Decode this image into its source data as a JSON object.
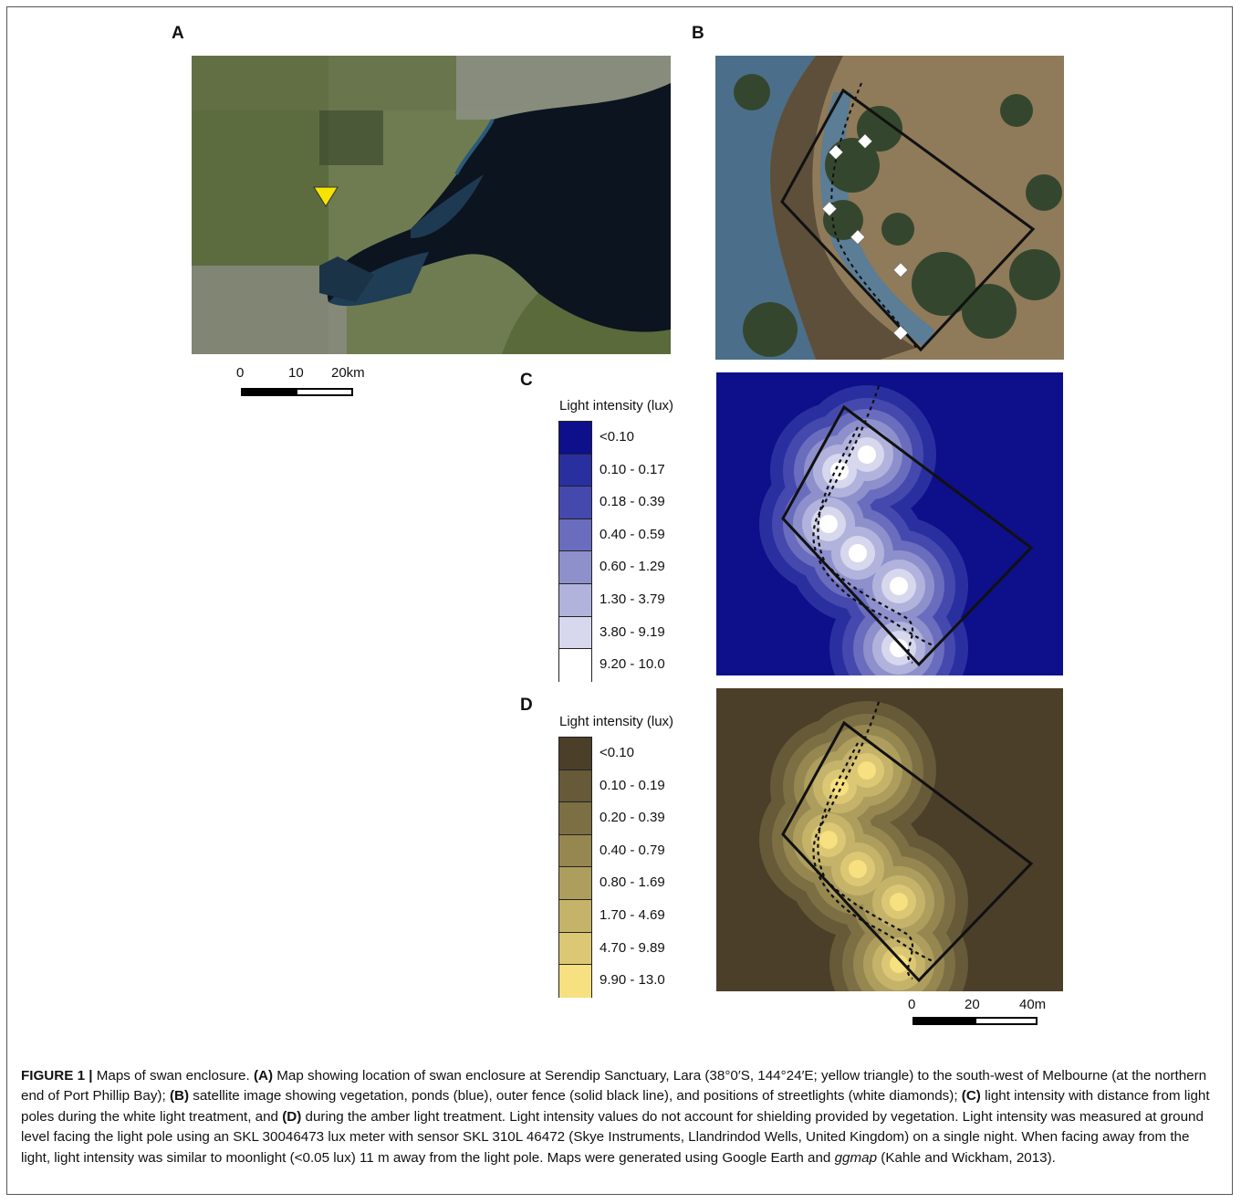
{
  "panels": {
    "a": {
      "label": "A",
      "scale": {
        "ticks": [
          "0",
          "10",
          "20km"
        ]
      }
    },
    "b": {
      "label": "B"
    },
    "c": {
      "label": "C",
      "legend_title": "Light intensity (lux)",
      "classes": [
        "<0.10",
        "0.10 - 0.17",
        "0.18 - 0.39",
        "0.40 - 0.59",
        "0.60 - 1.29",
        "1.30 - 3.79",
        "3.80 - 9.19",
        "9.20 - 10.0"
      ],
      "colors": [
        "#0e0f8a",
        "#2a2fa0",
        "#4549ad",
        "#6a6dbd",
        "#8e90cc",
        "#b1b3dc",
        "#d7d8ee",
        "#ffffff"
      ]
    },
    "d": {
      "label": "D",
      "legend_title": "Light intensity (lux)",
      "classes": [
        "<0.10",
        "0.10 - 0.19",
        "0.20 - 0.39",
        "0.40 - 0.79",
        "0.80 - 1.69",
        "1.70 - 4.69",
        "4.70 - 9.89",
        "9.90 - 13.0"
      ],
      "colors": [
        "#4b3f2a",
        "#665a38",
        "#7d6f44",
        "#968751",
        "#ae9e5e",
        "#c5b36a",
        "#dcc874",
        "#f6e07f"
      ],
      "scale": {
        "ticks": [
          "0",
          "20",
          "40m"
        ]
      }
    }
  },
  "caption": {
    "figure_label": "FIGURE 1 |",
    "text_1": " Maps of swan enclosure. ",
    "a_label": "(A)",
    "text_2": " Map showing location of swan enclosure at Serendip Sanctuary, Lara (38°0′S, 144°24′E; yellow triangle) to the south-west of Melbourne (at the northern end of Port Phillip Bay); ",
    "b_label": "(B)",
    "text_3": " satellite image showing vegetation, ponds (blue), outer fence (solid black line), and positions of streetlights (white diamonds); ",
    "c_label": "(C)",
    "text_4": " light intensity with distance from light poles during the white light treatment, and ",
    "d_label": "(D)",
    "text_5": " during the amber light treatment. Light intensity values do not account for shielding provided by vegetation. Light intensity was measured at ground level facing the light pole using an SKL 30046473 lux meter with sensor SKL 310L 46472 (Skye Instruments, Llandrindod Wells, United Kingdom) on a single night. When facing away from the light, light intensity was similar to moonlight (<0.05 lux) 11 m away from the light pole. Maps were generated using Google Earth and ",
    "ggmap": "ggmap",
    "text_6": " (Kahle and Wickham, 2013)."
  }
}
